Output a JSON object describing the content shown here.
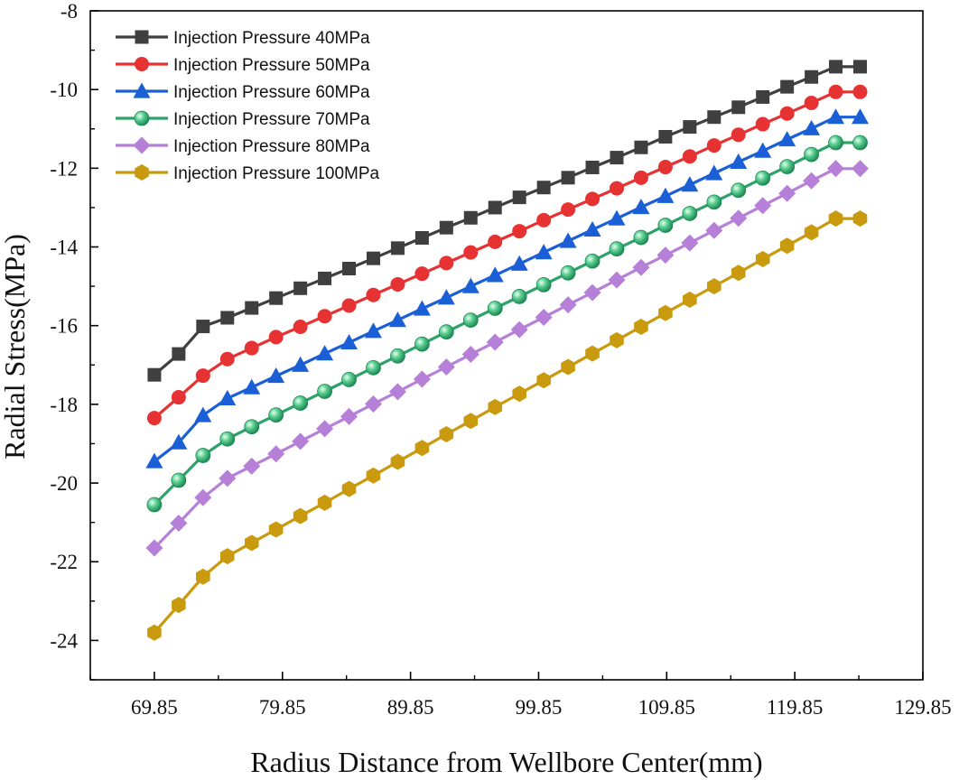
{
  "chart_data": {
    "type": "line",
    "title": "",
    "xlabel": "Radius  Distance from Wellbore Center(mm)",
    "ylabel": "Radial Stress(MPa)",
    "xlim": [
      64.85,
      129.85
    ],
    "ylim": [
      -25,
      -8
    ],
    "xticks": [
      "69.85",
      "79.85",
      "89.85",
      "99.85",
      "109.85",
      "119.85",
      "129.85"
    ],
    "yticks": [
      "-8",
      "-10",
      "-12",
      "-14",
      "-16",
      "-18",
      "-20",
      "-22",
      "-24"
    ],
    "legend_position": "top-left",
    "x": [
      69.85,
      71.75,
      73.65,
      75.55,
      77.45,
      79.35,
      81.25,
      83.15,
      85.05,
      86.95,
      88.85,
      90.75,
      92.65,
      94.55,
      96.45,
      98.35,
      100.25,
      102.15,
      104.05,
      105.95,
      107.85,
      109.75,
      111.65,
      113.55,
      115.45,
      117.35,
      119.25,
      121.15,
      123.05,
      124.95
    ],
    "series": [
      {
        "name": "Injection Pressure 40MPa",
        "color": "#3f3f3f",
        "marker": "square",
        "values": [
          -17.25,
          -16.72,
          -16.02,
          -15.8,
          -15.55,
          -15.3,
          -15.05,
          -14.8,
          -14.55,
          -14.29,
          -14.03,
          -13.77,
          -13.51,
          -13.26,
          -13.0,
          -12.74,
          -12.49,
          -12.24,
          -11.98,
          -11.73,
          -11.47,
          -11.2,
          -10.95,
          -10.7,
          -10.45,
          -10.19,
          -9.93,
          -9.68,
          -9.42,
          -9.42
        ]
      },
      {
        "name": "Injection Pressure 50MPa",
        "color": "#e63232",
        "marker": "circle",
        "values": [
          -18.35,
          -17.82,
          -17.27,
          -16.85,
          -16.57,
          -16.29,
          -16.03,
          -15.76,
          -15.49,
          -15.22,
          -14.95,
          -14.68,
          -14.41,
          -14.14,
          -13.87,
          -13.6,
          -13.32,
          -13.05,
          -12.78,
          -12.51,
          -12.24,
          -11.97,
          -11.7,
          -11.42,
          -11.15,
          -10.88,
          -10.61,
          -10.34,
          -10.06,
          -10.06
        ]
      },
      {
        "name": "Injection Pressure 60MPa",
        "color": "#1a5fd6",
        "marker": "triangle",
        "values": [
          -19.45,
          -18.97,
          -18.28,
          -17.85,
          -17.57,
          -17.28,
          -17.0,
          -16.71,
          -16.43,
          -16.14,
          -15.86,
          -15.57,
          -15.29,
          -15.0,
          -14.72,
          -14.43,
          -14.14,
          -13.85,
          -13.56,
          -13.28,
          -12.99,
          -12.71,
          -12.42,
          -12.13,
          -11.84,
          -11.56,
          -11.27,
          -10.99,
          -10.7,
          -10.7
        ]
      },
      {
        "name": "Injection Pressure 70MPa",
        "color": "#2da36a",
        "marker": "sphere",
        "values": [
          -20.55,
          -19.93,
          -19.3,
          -18.88,
          -18.57,
          -18.27,
          -17.97,
          -17.67,
          -17.37,
          -17.07,
          -16.77,
          -16.47,
          -16.16,
          -15.86,
          -15.56,
          -15.26,
          -14.96,
          -14.66,
          -14.36,
          -14.05,
          -13.76,
          -13.45,
          -13.15,
          -12.86,
          -12.56,
          -12.25,
          -11.96,
          -11.65,
          -11.35,
          -11.35
        ]
      },
      {
        "name": "Injection Pressure 80MPa",
        "color": "#b67fd8",
        "marker": "diamond",
        "values": [
          -21.65,
          -21.02,
          -20.37,
          -19.88,
          -19.57,
          -19.26,
          -18.94,
          -18.62,
          -18.31,
          -17.99,
          -17.68,
          -17.36,
          -17.05,
          -16.73,
          -16.42,
          -16.1,
          -15.79,
          -15.47,
          -15.16,
          -14.84,
          -14.52,
          -14.21,
          -13.9,
          -13.58,
          -13.27,
          -12.95,
          -12.64,
          -12.32,
          -12.01,
          -12.01
        ]
      },
      {
        "name": "Injection Pressure 100MPa",
        "color": "#c99a0e",
        "marker": "hexagon",
        "values": [
          -23.8,
          -23.1,
          -22.38,
          -21.86,
          -21.52,
          -21.18,
          -20.84,
          -20.5,
          -20.15,
          -19.81,
          -19.46,
          -19.11,
          -18.76,
          -18.42,
          -18.07,
          -17.73,
          -17.39,
          -17.05,
          -16.71,
          -16.37,
          -16.03,
          -15.68,
          -15.34,
          -15.0,
          -14.66,
          -14.31,
          -13.97,
          -13.63,
          -13.28,
          -13.28
        ]
      }
    ]
  }
}
